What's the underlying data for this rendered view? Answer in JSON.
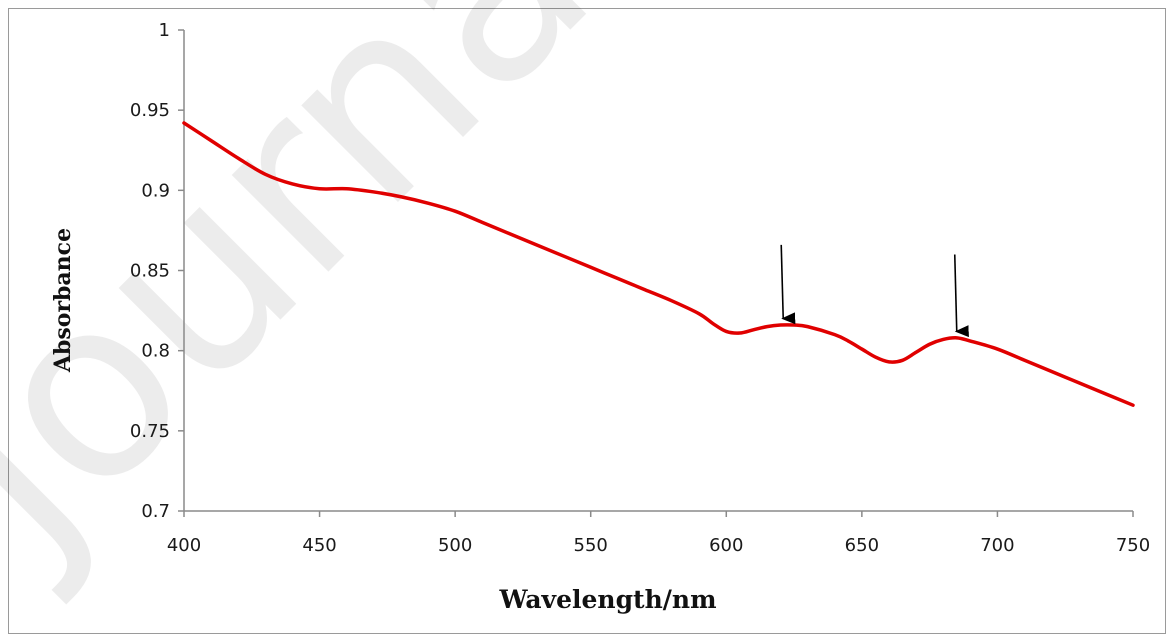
{
  "watermark": "Journal",
  "chart_data": {
    "type": "line",
    "title": "",
    "xlabel": "Wavelength/nm",
    "ylabel": "Absorbance",
    "xlim": [
      400,
      750
    ],
    "ylim": [
      0.7,
      1
    ],
    "x_ticks": [
      400,
      450,
      500,
      550,
      600,
      650,
      700,
      750
    ],
    "y_ticks": [
      "0.7",
      "0.75",
      "0.8",
      "0.85",
      "0.9",
      "0.95",
      "1"
    ],
    "grid": false,
    "legend": "none",
    "series": [
      {
        "color": "#e00000",
        "points": [
          [
            400,
            0.942
          ],
          [
            410,
            0.931
          ],
          [
            420,
            0.92
          ],
          [
            430,
            0.91
          ],
          [
            440,
            0.904
          ],
          [
            450,
            0.901
          ],
          [
            460,
            0.901
          ],
          [
            470,
            0.899
          ],
          [
            480,
            0.896
          ],
          [
            490,
            0.892
          ],
          [
            500,
            0.887
          ],
          [
            510,
            0.88
          ],
          [
            520,
            0.873
          ],
          [
            530,
            0.866
          ],
          [
            540,
            0.859
          ],
          [
            550,
            0.852
          ],
          [
            560,
            0.845
          ],
          [
            570,
            0.838
          ],
          [
            580,
            0.831
          ],
          [
            590,
            0.823
          ],
          [
            595,
            0.817
          ],
          [
            600,
            0.812
          ],
          [
            605,
            0.811
          ],
          [
            610,
            0.813
          ],
          [
            615,
            0.815
          ],
          [
            620,
            0.816
          ],
          [
            625,
            0.816
          ],
          [
            630,
            0.815
          ],
          [
            640,
            0.81
          ],
          [
            645,
            0.806
          ],
          [
            650,
            0.801
          ],
          [
            655,
            0.796
          ],
          [
            660,
            0.793
          ],
          [
            665,
            0.794
          ],
          [
            670,
            0.799
          ],
          [
            675,
            0.804
          ],
          [
            680,
            0.807
          ],
          [
            685,
            0.808
          ],
          [
            690,
            0.806
          ],
          [
            700,
            0.801
          ],
          [
            710,
            0.794
          ],
          [
            720,
            0.787
          ],
          [
            730,
            0.78
          ],
          [
            740,
            0.773
          ],
          [
            750,
            0.766
          ]
        ]
      }
    ],
    "annotations": [
      {
        "type": "arrow",
        "x": 621,
        "y_from": 0.866,
        "y_to": 0.82
      },
      {
        "type": "arrow",
        "x": 685,
        "y_from": 0.86,
        "y_to": 0.812
      }
    ]
  }
}
